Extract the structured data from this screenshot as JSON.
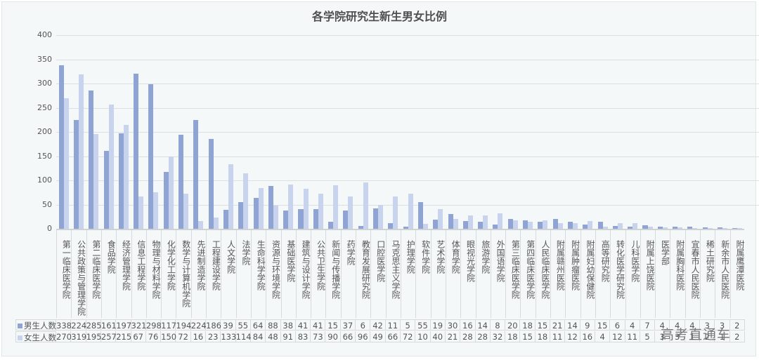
{
  "chart_data": {
    "type": "bar",
    "title": "各学院研究生新生男女比例",
    "xlabel": "",
    "ylabel": "",
    "ylim": [
      0,
      400
    ],
    "yticks": [
      0,
      50,
      100,
      150,
      200,
      250,
      300,
      350,
      400
    ],
    "grid": true,
    "legend_position": "data-table-left",
    "categories": [
      "第一临床医学院",
      "公共政策与管理学院",
      "第二临床医学院",
      "食品学院",
      "经济管理学院",
      "信息工程学院",
      "物理与材料学院",
      "化学化工学院",
      "数学与计算机学院",
      "先进制造学院",
      "工程建设学院",
      "人文学院",
      "法学院",
      "生命科学学院",
      "资源与环境学院",
      "基础医学院",
      "建筑与设计学院",
      "公共卫生学院",
      "新闻与传播学院",
      "药学院",
      "教育发展研究院",
      "口腔医学院",
      "马克思主义学院",
      "护理学院",
      "软件学院",
      "艺术学院",
      "体育学院",
      "眼视光学院",
      "旅游学院",
      "外国语学院",
      "第三临床医学院",
      "第四临床医学院",
      "人民临床医学院",
      "附属赣州医院",
      "附属肿瘤医院",
      "附属妇幼保健院",
      "高等研究院",
      "转化医学研究院",
      "儿科医学院",
      "附属上饶医院",
      "医学部",
      "附属胸科医院",
      "宜春市人民医院",
      "稀土研究院",
      "新余市人民医院",
      "附属鹰潭医院"
    ],
    "series": [
      {
        "name": "男生人数",
        "color": "#90a4d4",
        "values": [
          338,
          224,
          285,
          161,
          197,
          321,
          298,
          117,
          194,
          224,
          186,
          39,
          55,
          64,
          88,
          38,
          41,
          41,
          15,
          37,
          6,
          42,
          11,
          5,
          55,
          19,
          30,
          16,
          14,
          8,
          20,
          18,
          15,
          21,
          14,
          9,
          15,
          6,
          4,
          7,
          4,
          4,
          4,
          3,
          3,
          2
        ]
      },
      {
        "name": "女生人数",
        "color": "#c8d4ee",
        "values": [
          270,
          319,
          195,
          257,
          215,
          67,
          76,
          150,
          72,
          16,
          23,
          133,
          114,
          84,
          48,
          91,
          83,
          73,
          90,
          66,
          96,
          49,
          66,
          72,
          10,
          40,
          21,
          28,
          28,
          32,
          18,
          15,
          18,
          11,
          12,
          16,
          4,
          12,
          11,
          5,
          3,
          3,
          1,
          2,
          1,
          2
        ]
      }
    ]
  },
  "watermark": "高考直通车"
}
